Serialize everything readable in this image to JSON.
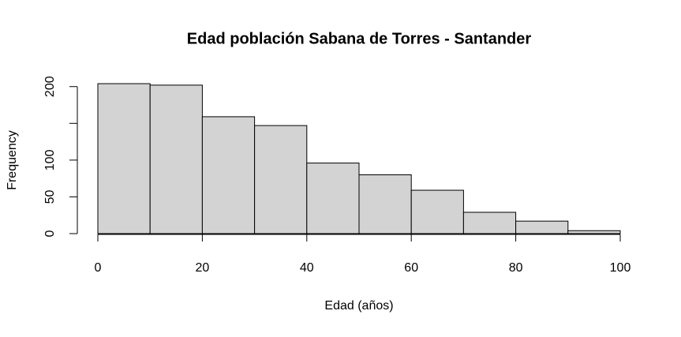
{
  "chart_data": {
    "type": "histogram",
    "title": "Edad población Sabana de Torres - Santander",
    "xlabel": "Edad (años)",
    "ylabel": "Frequency",
    "bins": [
      0,
      10,
      20,
      30,
      40,
      50,
      60,
      70,
      80,
      90,
      100
    ],
    "values": [
      204,
      202,
      159,
      147,
      96,
      80,
      59,
      29,
      17,
      4
    ],
    "color": "#d3d3d3",
    "xlim": [
      0,
      100
    ],
    "xticks": [
      0,
      20,
      40,
      60,
      80,
      100
    ],
    "ylim": [
      0,
      204
    ],
    "yticks": [
      0,
      50,
      100,
      150,
      200
    ]
  }
}
